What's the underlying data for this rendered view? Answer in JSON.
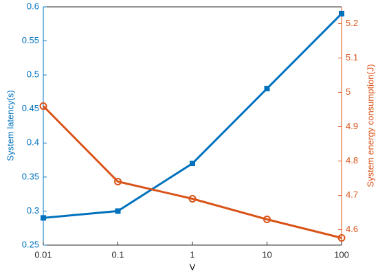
{
  "chart_data": {
    "type": "line",
    "x_label": "V",
    "y_label": "System latency(s)",
    "y2_label": "System energy consumption(J)",
    "x": [
      0.01,
      0.1,
      1,
      10,
      100
    ],
    "xscale": "log",
    "xlim": [
      0.01,
      100
    ],
    "xticks": [
      0.01,
      0.1,
      1,
      10,
      100
    ],
    "ylim": [
      0.25,
      0.6
    ],
    "yticks": [
      0.25,
      0.3,
      0.35,
      0.4,
      0.45,
      0.5,
      0.55,
      0.6
    ],
    "y2lim": [
      4.555,
      5.249
    ],
    "y2ticks": [
      4.6,
      4.7,
      4.8,
      4.9,
      5,
      5.1,
      5.2
    ],
    "y_color": "#0072bd",
    "y2_color": "#d95319",
    "grid": false,
    "series": [
      {
        "color": "#0072bd",
        "marker": "square",
        "values": [
          0.29,
          0.3,
          0.37,
          0.48,
          0.59
        ]
      },
      {
        "color": "#d95319",
        "marker": "circle",
        "axis": "y2",
        "values": [
          4.96,
          4.74,
          4.69,
          4.63,
          4.576
        ]
      }
    ]
  }
}
